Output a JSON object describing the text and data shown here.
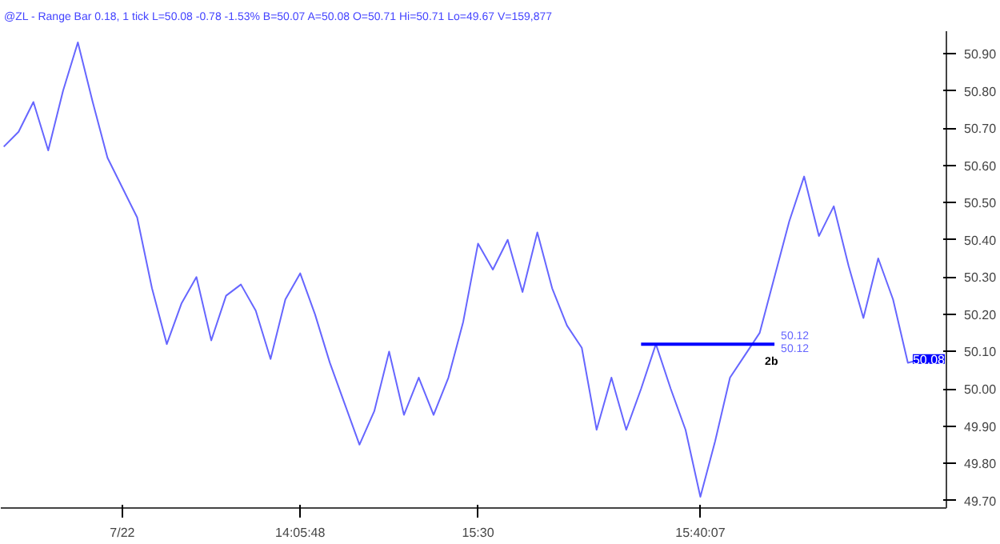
{
  "chart_data": {
    "type": "line",
    "title": "@ZL - Range Bar 0.18, 1 tick  L=50.08 -0.78 -1.53% B=50.07 A=50.08 O=50.71 Hi=50.71 Lo=49.67 V=159,877",
    "categories": [
      null,
      null,
      null,
      null,
      null,
      null,
      null,
      null,
      "7/22",
      null,
      null,
      null,
      null,
      null,
      null,
      null,
      null,
      null,
      null,
      null,
      "14:05:48",
      null,
      null,
      null,
      null,
      null,
      null,
      null,
      null,
      null,
      null,
      null,
      "15:30",
      null,
      null,
      null,
      null,
      null,
      null,
      null,
      null,
      null,
      null,
      null,
      null,
      null,
      null,
      "15:40:07",
      null,
      null,
      null,
      null,
      null,
      null,
      null,
      null,
      null,
      null,
      null,
      null,
      null,
      null,
      null
    ],
    "series": [
      {
        "color": "#6666ff",
        "values": [
          50.65,
          50.69,
          50.77,
          50.64,
          50.8,
          50.93,
          50.77,
          50.62,
          50.54,
          50.46,
          50.27,
          50.12,
          50.23,
          50.3,
          50.13,
          50.25,
          50.28,
          50.21,
          50.08,
          50.24,
          50.31,
          50.2,
          50.07,
          49.96,
          49.85,
          49.94,
          50.1,
          49.93,
          50.03,
          49.93,
          50.03,
          50.18,
          50.39,
          50.32,
          50.4,
          50.26,
          50.42,
          50.27,
          50.17,
          50.11,
          49.89,
          50.03,
          49.89,
          50.0,
          50.12,
          50.0,
          49.89,
          49.71,
          49.86,
          50.03,
          50.09,
          50.15,
          50.3,
          50.45,
          50.57,
          50.41,
          50.49,
          50.33,
          50.19,
          50.35,
          50.24,
          50.07,
          50.08
        ]
      },
      {
        "color": "#0000ff",
        "values": [
          null,
          null,
          null,
          null,
          null,
          null,
          null,
          null,
          null,
          null,
          null,
          null,
          null,
          null,
          null,
          null,
          null,
          null,
          null,
          null,
          null,
          null,
          null,
          null,
          null,
          null,
          null,
          null,
          null,
          null,
          null,
          null,
          null,
          null,
          null,
          null,
          null,
          null,
          null,
          null,
          null,
          null,
          null,
          50.12,
          50.12,
          50.12,
          50.12,
          50.12,
          50.12,
          50.12,
          50.12,
          50.12,
          50.12,
          null,
          null,
          null,
          null,
          null,
          null,
          null,
          null,
          null,
          null
        ]
      }
    ],
    "ylim": [
      49.68,
      50.96
    ],
    "yticks": [
      {
        "value": 49.7,
        "label": "49.70"
      },
      {
        "value": 49.8,
        "label": "49.80"
      },
      {
        "value": 49.9,
        "label": "49.90"
      },
      {
        "value": 50.0,
        "label": "50.00"
      },
      {
        "value": 50.1,
        "label": "50.10"
      },
      {
        "value": 50.2,
        "label": "50.20"
      },
      {
        "value": 50.3,
        "label": "50.30"
      },
      {
        "value": 50.4,
        "label": "50.40"
      },
      {
        "value": 50.5,
        "label": "50.50"
      },
      {
        "value": 50.6,
        "label": "50.60"
      },
      {
        "value": 50.7,
        "label": "50.70"
      },
      {
        "value": 50.8,
        "label": "50.80"
      },
      {
        "value": 50.9,
        "label": "50.90"
      }
    ],
    "annotations": [
      "50.12",
      "50.12",
      {
        "text": "2b",
        "y": 50.12
      },
      {
        "text": "50.08",
        "y": 50.08
      }
    ],
    "grid": false,
    "line_style": "solid",
    "marker": "none"
  }
}
